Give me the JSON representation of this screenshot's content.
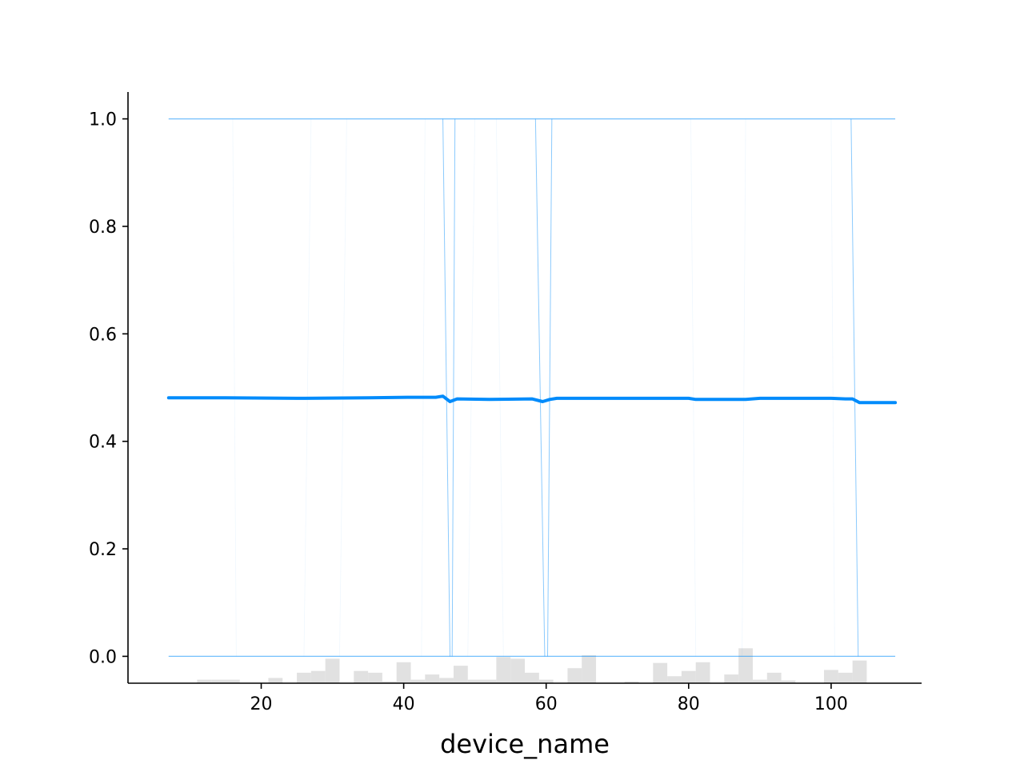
{
  "chart_data": {
    "type": "line",
    "title": "",
    "xlabel": "device_name",
    "ylabel": "",
    "xlim": [
      1.3,
      112.7
    ],
    "ylim": [
      -0.05,
      1.05
    ],
    "x_ticks": [
      20,
      40,
      60,
      80,
      100
    ],
    "x_tick_labels": [
      "20",
      "40",
      "60",
      "80",
      "100"
    ],
    "y_ticks": [
      0.0,
      0.2,
      0.4,
      0.6,
      0.8,
      1.0
    ],
    "y_tick_labels": [
      "0.0",
      "0.2",
      "0.4",
      "0.6",
      "0.8",
      "1.0"
    ],
    "grid": false,
    "legend": "none",
    "colors": {
      "mean_line": "#008bfb",
      "ice_lines": "#008bfb",
      "histogram": "#d9d9d9",
      "axis": "#000000"
    },
    "series": [
      {
        "kind": "average",
        "x": [
          7,
          15,
          25,
          35,
          41,
          44.5,
          45.5,
          46.5,
          47.5,
          52,
          58,
          59.5,
          60.5,
          61.5,
          70,
          80,
          81,
          85,
          88,
          90,
          100,
          102,
          103,
          104,
          109
        ],
        "y": [
          0.481,
          0.481,
          0.48,
          0.481,
          0.482,
          0.482,
          0.484,
          0.474,
          0.479,
          0.478,
          0.479,
          0.474,
          0.478,
          0.48,
          0.48,
          0.48,
          0.478,
          0.478,
          0.478,
          0.48,
          0.48,
          0.479,
          0.479,
          0.472,
          0.472
        ]
      }
    ],
    "ice_lines_flat": [
      {
        "y": 1.0,
        "x": [
          7,
          109
        ]
      },
      {
        "y": 0.0,
        "x": [
          7,
          109
        ]
      }
    ],
    "ice_lines_vertical": [
      {
        "x_start": 45.5,
        "x_end": 46.5,
        "strong": true
      },
      {
        "x_start": 47.2,
        "x_end": 46.8,
        "strong": true
      },
      {
        "x_start": 58.5,
        "x_end": 59.8,
        "strong": true
      },
      {
        "x_start": 60.8,
        "x_end": 60.2,
        "strong": true
      },
      {
        "x_start": 102.8,
        "x_end": 103.8,
        "strong": true
      },
      {
        "x_start": 16,
        "x_end": 16.5,
        "strong": false
      },
      {
        "x_start": 27,
        "x_end": 26,
        "strong": false
      },
      {
        "x_start": 32,
        "x_end": 31,
        "strong": false
      },
      {
        "x_start": 43,
        "x_end": 42.5,
        "strong": false
      },
      {
        "x_start": 50,
        "x_end": 49,
        "strong": false
      },
      {
        "x_start": 53,
        "x_end": 54,
        "strong": false
      },
      {
        "x_start": 80.3,
        "x_end": 81,
        "strong": false
      },
      {
        "x_start": 88,
        "x_end": 87.5,
        "strong": false
      },
      {
        "x_start": 100,
        "x_end": 100.5,
        "strong": false
      }
    ],
    "histogram": {
      "bin_edges": [
        11,
        13,
        15,
        17,
        19,
        21,
        23,
        25,
        27,
        29,
        31,
        33,
        35,
        37,
        39,
        41,
        43,
        45,
        47,
        49,
        51,
        53,
        55,
        57,
        59,
        61,
        63,
        65,
        67,
        69,
        71,
        73,
        75,
        77,
        79,
        81,
        83,
        85,
        87,
        89,
        91,
        93,
        95,
        97,
        99,
        101,
        103,
        105
      ],
      "heights": [
        0.1,
        0.1,
        0.1,
        0,
        0,
        0.15,
        0,
        0.3,
        0.35,
        0.7,
        0,
        0.35,
        0.3,
        0.05,
        0.6,
        0.1,
        0.25,
        0.15,
        0.5,
        0.1,
        0.1,
        0.75,
        0.7,
        0.3,
        0.1,
        0,
        0.43,
        0.8,
        0,
        0,
        0.05,
        0,
        0.58,
        0.2,
        0.35,
        0.6,
        0,
        0.25,
        1.0,
        0.1,
        0.3,
        0.08,
        0,
        0,
        0.38,
        0.3,
        0.65
      ]
    }
  }
}
